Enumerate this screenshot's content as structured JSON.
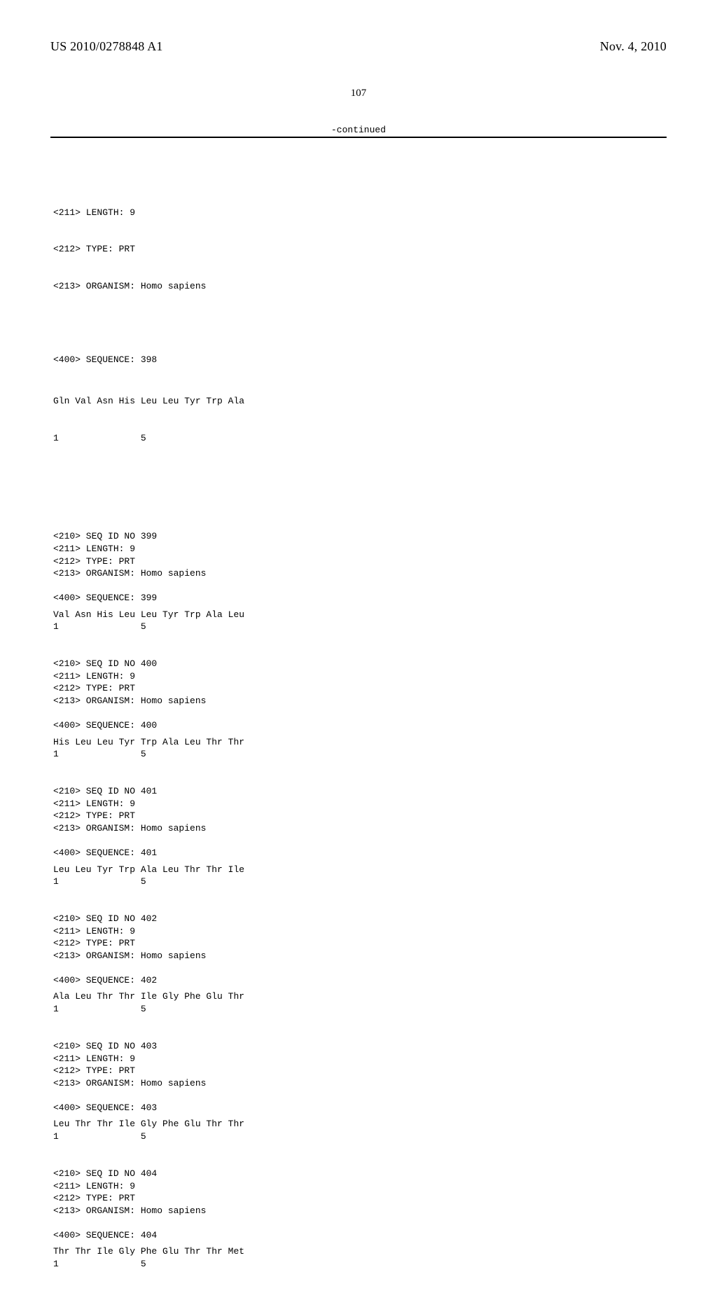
{
  "header": {
    "publication_number": "US 2010/0278848 A1",
    "publication_date": "Nov. 4, 2010"
  },
  "page_number": "107",
  "continued_label": "-continued",
  "first_block": {
    "length_line": "<211> LENGTH: 9",
    "type_line": "<212> TYPE: PRT",
    "organism_line": "<213> ORGANISM: Homo sapiens",
    "seq_header": "<400> SEQUENCE: 398",
    "sequence": "Gln Val Asn His Leu Leu Tyr Trp Ala",
    "positions": "1               5"
  },
  "sequences": [
    {
      "id_line": "<210> SEQ ID NO 399",
      "length_line": "<211> LENGTH: 9",
      "type_line": "<212> TYPE: PRT",
      "organism_line": "<213> ORGANISM: Homo sapiens",
      "seq_header": "<400> SEQUENCE: 399",
      "sequence": "Val Asn His Leu Leu Tyr Trp Ala Leu",
      "positions": "1               5"
    },
    {
      "id_line": "<210> SEQ ID NO 400",
      "length_line": "<211> LENGTH: 9",
      "type_line": "<212> TYPE: PRT",
      "organism_line": "<213> ORGANISM: Homo sapiens",
      "seq_header": "<400> SEQUENCE: 400",
      "sequence": "His Leu Leu Tyr Trp Ala Leu Thr Thr",
      "positions": "1               5"
    },
    {
      "id_line": "<210> SEQ ID NO 401",
      "length_line": "<211> LENGTH: 9",
      "type_line": "<212> TYPE: PRT",
      "organism_line": "<213> ORGANISM: Homo sapiens",
      "seq_header": "<400> SEQUENCE: 401",
      "sequence": "Leu Leu Tyr Trp Ala Leu Thr Thr Ile",
      "positions": "1               5"
    },
    {
      "id_line": "<210> SEQ ID NO 402",
      "length_line": "<211> LENGTH: 9",
      "type_line": "<212> TYPE: PRT",
      "organism_line": "<213> ORGANISM: Homo sapiens",
      "seq_header": "<400> SEQUENCE: 402",
      "sequence": "Ala Leu Thr Thr Ile Gly Phe Glu Thr",
      "positions": "1               5"
    },
    {
      "id_line": "<210> SEQ ID NO 403",
      "length_line": "<211> LENGTH: 9",
      "type_line": "<212> TYPE: PRT",
      "organism_line": "<213> ORGANISM: Homo sapiens",
      "seq_header": "<400> SEQUENCE: 403",
      "sequence": "Leu Thr Thr Ile Gly Phe Glu Thr Thr",
      "positions": "1               5"
    },
    {
      "id_line": "<210> SEQ ID NO 404",
      "length_line": "<211> LENGTH: 9",
      "type_line": "<212> TYPE: PRT",
      "organism_line": "<213> ORGANISM: Homo sapiens",
      "seq_header": "<400> SEQUENCE: 404",
      "sequence": "Thr Thr Ile Gly Phe Glu Thr Thr Met",
      "positions": "1               5"
    }
  ]
}
